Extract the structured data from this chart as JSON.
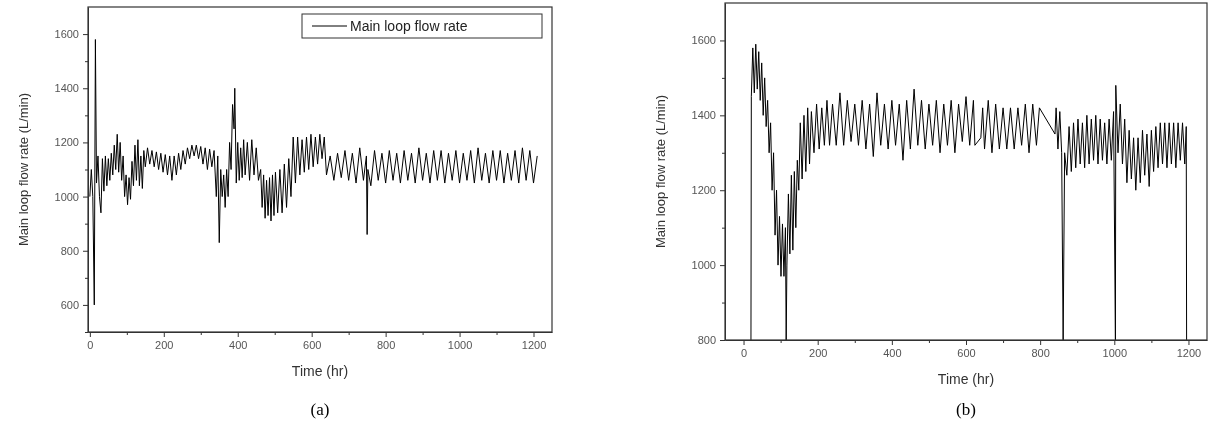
{
  "chart_data": [
    {
      "type": "line",
      "xlabel": "Time (hr)",
      "ylabel": "Main loop flow rate (L/min)",
      "annotations": [
        "(a)"
      ],
      "legend": "top right",
      "grid": false,
      "marker": "none",
      "line_style": "solid",
      "xlim": [
        -5,
        1250
      ],
      "ylim": [
        500,
        1700
      ],
      "xticks": [
        0,
        {
          "value": 100,
          "label": null
        },
        200,
        {
          "value": 300,
          "label": null
        },
        400,
        {
          "value": 500,
          "label": null
        },
        600,
        {
          "value": 700,
          "label": null
        },
        800,
        {
          "value": 900,
          "label": null
        },
        1000,
        {
          "value": 1100,
          "label": null
        },
        1200
      ],
      "yticks": [
        {
          "value": 500,
          "label": null
        },
        600,
        {
          "value": 700,
          "label": null
        },
        800,
        {
          "value": 900,
          "label": null
        },
        1000,
        {
          "value": 1100,
          "label": null
        },
        1200,
        {
          "value": 1300,
          "label": null
        },
        1400,
        {
          "value": 1500,
          "label": null
        },
        1600
      ],
      "series": [
        {
          "name": "Main loop flow rate",
          "color": "#000000",
          "x": [
            0,
            4,
            8,
            12,
            15,
            18,
            22,
            26,
            30,
            34,
            38,
            42,
            46,
            50,
            54,
            58,
            62,
            66,
            70,
            74,
            78,
            82,
            86,
            90,
            94,
            98,
            102,
            106,
            110,
            114,
            118,
            122,
            126,
            130,
            134,
            138,
            142,
            146,
            150,
            156,
            162,
            168,
            174,
            180,
            186,
            192,
            198,
            204,
            210,
            216,
            222,
            228,
            234,
            240,
            246,
            252,
            258,
            264,
            270,
            276,
            282,
            288,
            294,
            300,
            306,
            312,
            318,
            324,
            330,
            336,
            342,
            346,
            350,
            354,
            358,
            362,
            366,
            370,
            374,
            378,
            382,
            386,
            390,
            392,
            396,
            400,
            404,
            408,
            412,
            416,
            420,
            426,
            432,
            438,
            444,
            450,
            456,
            462,
            466,
            470,
            474,
            478,
            482,
            486,
            490,
            494,
            498,
            502,
            508,
            514,
            520,
            526,
            532,
            538,
            544,
            550,
            556,
            562,
            568,
            574,
            580,
            586,
            592,
            598,
            604,
            610,
            616,
            622,
            628,
            634,
            640,
            650,
            660,
            670,
            680,
            690,
            700,
            710,
            720,
            730,
            740,
            748,
            750,
            752,
            760,
            770,
            780,
            790,
            800,
            810,
            820,
            830,
            840,
            850,
            860,
            870,
            880,
            890,
            900,
            910,
            920,
            930,
            940,
            950,
            960,
            970,
            980,
            990,
            1000,
            1010,
            1020,
            1030,
            1040,
            1050,
            1060,
            1070,
            1080,
            1090,
            1100,
            1110,
            1120,
            1130,
            1140,
            1150,
            1160,
            1170,
            1180,
            1190,
            1200,
            1210
          ],
          "values": [
            1000,
            1100,
            1000,
            600,
            1580,
            1050,
            1150,
            1000,
            940,
            1140,
            1020,
            1150,
            1040,
            1140,
            1060,
            1160,
            1080,
            1190,
            1100,
            1230,
            1090,
            1200,
            1060,
            1150,
            1000,
            1080,
            970,
            1070,
            990,
            1130,
            1040,
            1190,
            1060,
            1210,
            1040,
            1150,
            1030,
            1170,
            1110,
            1180,
            1120,
            1170,
            1110,
            1165,
            1100,
            1160,
            1090,
            1155,
            1080,
            1150,
            1060,
            1150,
            1080,
            1160,
            1100,
            1170,
            1120,
            1180,
            1140,
            1190,
            1150,
            1190,
            1140,
            1185,
            1120,
            1180,
            1100,
            1175,
            1110,
            1170,
            1000,
            1150,
            830,
            1100,
            1000,
            1080,
            960,
            1100,
            1000,
            1200,
            1100,
            1340,
            1250,
            1400,
            1050,
            1200,
            1060,
            1180,
            1070,
            1210,
            1080,
            1200,
            1060,
            1210,
            1080,
            1180,
            1060,
            1100,
            960,
            1080,
            920,
            1060,
            930,
            1070,
            910,
            1080,
            930,
            1090,
            940,
            1100,
            940,
            1120,
            960,
            1140,
            1000,
            1220,
            1050,
            1220,
            1080,
            1210,
            1090,
            1220,
            1100,
            1230,
            1110,
            1220,
            1120,
            1230,
            1140,
            1220,
            1080,
            1150,
            1060,
            1160,
            1070,
            1170,
            1060,
            1160,
            1050,
            1180,
            1060,
            1150,
            860,
            1100,
            1040,
            1170,
            1060,
            1160,
            1050,
            1170,
            1060,
            1160,
            1050,
            1170,
            1060,
            1160,
            1050,
            1180,
            1060,
            1160,
            1050,
            1170,
            1060,
            1170,
            1050,
            1160,
            1060,
            1170,
            1050,
            1160,
            1060,
            1170,
            1050,
            1180,
            1060,
            1160,
            1050,
            1170,
            1060,
            1170,
            1050,
            1160,
            1060,
            1170,
            1050,
            1180,
            1060,
            1170,
            1050,
            1150
          ]
        }
      ]
    },
    {
      "type": "line",
      "xlabel": "Time (hr)",
      "ylabel": "Main loop flow rate (L/min)",
      "annotations": [
        "(b)"
      ],
      "legend": false,
      "grid": false,
      "marker": "none",
      "line_style": "solid",
      "xlim": [
        -50,
        1250
      ],
      "ylim": [
        800,
        1700
      ],
      "xticks": [
        0,
        {
          "value": 100,
          "label": null
        },
        200,
        {
          "value": 300,
          "label": null
        },
        400,
        {
          "value": 500,
          "label": null
        },
        600,
        {
          "value": 700,
          "label": null
        },
        800,
        {
          "value": 900,
          "label": null
        },
        1000,
        {
          "value": 1100,
          "label": null
        },
        1200
      ],
      "yticks": [
        800,
        {
          "value": 900,
          "label": null
        },
        1000,
        {
          "value": 1100,
          "label": null
        },
        1200,
        {
          "value": 1300,
          "label": null
        },
        1400,
        {
          "value": 1500,
          "label": null
        },
        1600
      ],
      "series": [
        {
          "color": "#000000",
          "x": [
            20,
            21,
            25,
            29,
            33,
            37,
            41,
            45,
            49,
            53,
            57,
            61,
            65,
            69,
            73,
            77,
            81,
            85,
            89,
            93,
            97,
            101,
            105,
            109,
            113,
            115,
            117,
            121,
            125,
            129,
            133,
            137,
            141,
            145,
            149,
            153,
            158,
            163,
            168,
            173,
            178,
            183,
            190,
            197,
            204,
            211,
            218,
            225,
            232,
            240,
            250,
            260,
            270,
            280,
            290,
            300,
            310,
            320,
            330,
            340,
            350,
            360,
            370,
            380,
            390,
            400,
            410,
            420,
            430,
            440,
            450,
            460,
            470,
            480,
            490,
            500,
            510,
            520,
            530,
            540,
            550,
            560,
            570,
            580,
            590,
            600,
            610,
            620,
            624,
            640,
            645,
            650,
            660,
            670,
            680,
            690,
            700,
            710,
            720,
            730,
            740,
            750,
            760,
            770,
            780,
            790,
            798,
            840,
            843,
            848,
            853,
            858,
            862,
            866,
            872,
            878,
            884,
            890,
            896,
            902,
            908,
            914,
            920,
            926,
            932,
            938,
            944,
            950,
            956,
            962,
            968,
            974,
            980,
            986,
            992,
            998,
            1003,
            1004,
            1010,
            1016,
            1022,
            1028,
            1034,
            1040,
            1046,
            1052,
            1058,
            1064,
            1070,
            1076,
            1082,
            1088,
            1094,
            1100,
            1106,
            1112,
            1118,
            1124,
            1130,
            1136,
            1142,
            1148,
            1154,
            1160,
            1166,
            1172,
            1178,
            1184,
            1190,
            1194,
            1195
          ],
          "values": [
            800,
            1450,
            1580,
            1460,
            1590,
            1470,
            1570,
            1440,
            1540,
            1400,
            1500,
            1370,
            1440,
            1300,
            1380,
            1200,
            1300,
            1080,
            1200,
            1000,
            1130,
            970,
            1110,
            970,
            1100,
            800,
            1000,
            1190,
            1030,
            1240,
            1040,
            1250,
            1100,
            1280,
            1200,
            1380,
            1230,
            1400,
            1250,
            1420,
            1270,
            1410,
            1300,
            1430,
            1310,
            1420,
            1320,
            1440,
            1320,
            1430,
            1320,
            1460,
            1320,
            1440,
            1330,
            1430,
            1320,
            1440,
            1310,
            1430,
            1290,
            1460,
            1320,
            1430,
            1310,
            1440,
            1320,
            1430,
            1280,
            1440,
            1310,
            1470,
            1320,
            1440,
            1310,
            1430,
            1320,
            1440,
            1300,
            1430,
            1320,
            1440,
            1300,
            1430,
            1330,
            1450,
            1320,
            1440,
            1320,
            1340,
            1420,
            1310,
            1440,
            1300,
            1430,
            1310,
            1420,
            1310,
            1420,
            1310,
            1420,
            1320,
            1430,
            1300,
            1430,
            1320,
            1420,
            1350,
            1420,
            1310,
            1410,
            1300,
            800,
            1300,
            1240,
            1370,
            1250,
            1380,
            1260,
            1390,
            1270,
            1380,
            1260,
            1400,
            1270,
            1390,
            1280,
            1400,
            1270,
            1390,
            1280,
            1380,
            1270,
            1390,
            1280,
            1410,
            800,
            1480,
            1300,
            1430,
            1270,
            1390,
            1220,
            1360,
            1230,
            1340,
            1200,
            1340,
            1220,
            1360,
            1240,
            1350,
            1210,
            1360,
            1250,
            1370,
            1260,
            1380,
            1270,
            1380,
            1260,
            1380,
            1270,
            1380,
            1260,
            1380,
            1280,
            1380,
            1270,
            1370,
            800
          ]
        }
      ]
    }
  ]
}
